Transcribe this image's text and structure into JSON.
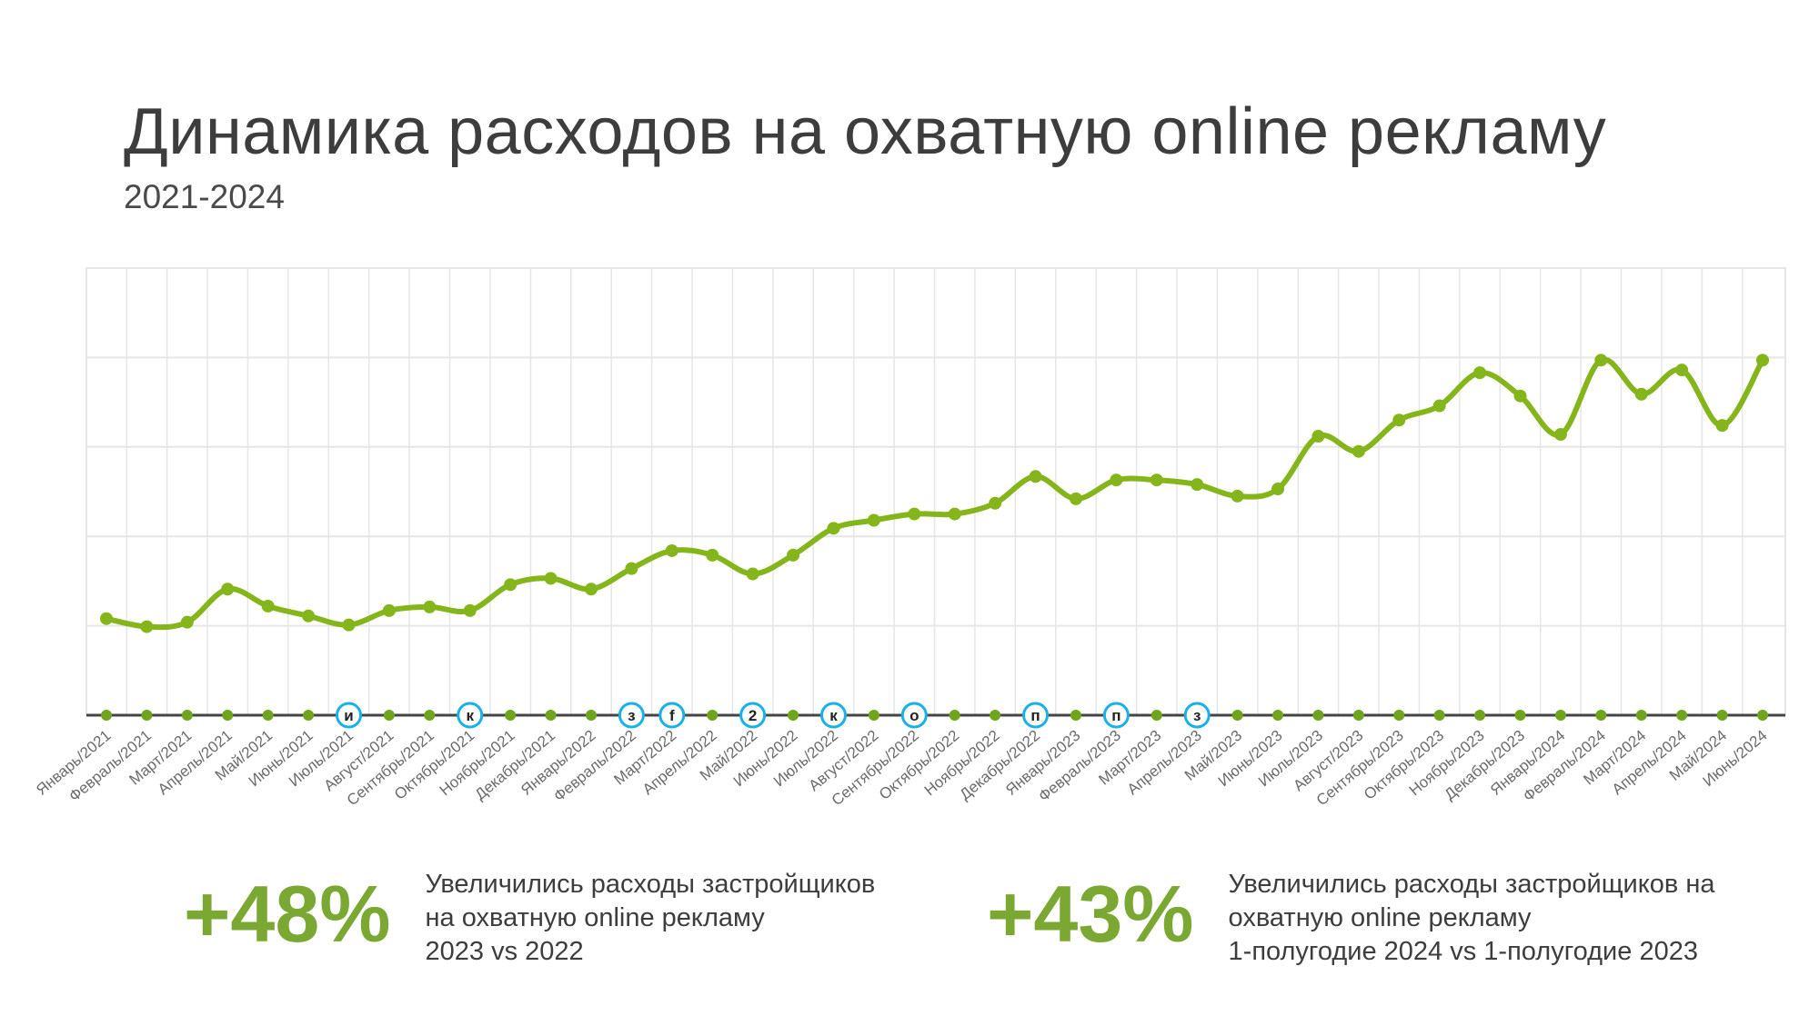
{
  "header": {
    "title": "Динамика расходов на охватную online рекламу",
    "subtitle": "2021-2024"
  },
  "colors": {
    "line": "#84b51a",
    "accent": "#7aa833",
    "marker_ring": "#1ab0e8",
    "grid": "#e6e6e6",
    "baseline": "#444444"
  },
  "chart_data": {
    "type": "line",
    "title": "Динамика расходов на охватную online рекламу",
    "xlabel": "",
    "ylabel": "",
    "ylim": [
      0,
      5
    ],
    "grid": true,
    "categories": [
      "Январь/2021",
      "Февраль/2021",
      "Март/2021",
      "Апрель/2021",
      "Май/2021",
      "Июнь/2021",
      "Июль/2021",
      "Август/2021",
      "Сентябрь/2021",
      "Октябрь/2021",
      "Ноябрь/2021",
      "Декабрь/2021",
      "Январь/2022",
      "Февраль/2022",
      "Март/2022",
      "Апрель/2022",
      "Май/2022",
      "Июнь/2022",
      "Июль/2022",
      "Август/2022",
      "Сентябрь/2022",
      "Октябрь/2022",
      "Ноябрь/2022",
      "Декабрь/2022",
      "Январь/2023",
      "Февраль/2023",
      "Март/2023",
      "Апрель/2023",
      "Май/2023",
      "Июнь/2023",
      "Июль/2023",
      "Август/2023",
      "Сентябрь/2023",
      "Октябрь/2023",
      "Ноябрь/2023",
      "Декабрь/2023",
      "Январь/2024",
      "Февраль/2024",
      "Март/2024",
      "Апрель/2024",
      "Май/2024",
      "Июнь/2024"
    ],
    "series": [
      {
        "name": "Расходы",
        "values": [
          1.08,
          0.99,
          1.04,
          1.41,
          1.22,
          1.11,
          1.01,
          1.17,
          1.21,
          1.17,
          1.46,
          1.53,
          1.41,
          1.64,
          1.84,
          1.79,
          1.58,
          1.79,
          2.09,
          2.18,
          2.25,
          2.25,
          2.37,
          2.67,
          2.42,
          2.63,
          2.63,
          2.58,
          2.45,
          2.53,
          3.12,
          2.95,
          3.3,
          3.46,
          3.83,
          3.57,
          3.14,
          3.97,
          3.59,
          3.86,
          3.24,
          3.97
        ]
      }
    ],
    "annotations": [
      {
        "index": 6,
        "label": "и"
      },
      {
        "index": 9,
        "label": "к"
      },
      {
        "index": 13,
        "label": "з"
      },
      {
        "index": 14,
        "label": "f"
      },
      {
        "index": 16,
        "label": "2"
      },
      {
        "index": 18,
        "label": "к"
      },
      {
        "index": 20,
        "label": "о"
      },
      {
        "index": 23,
        "label": "п"
      },
      {
        "index": 25,
        "label": "п"
      },
      {
        "index": 27,
        "label": "з"
      }
    ]
  },
  "stats": [
    {
      "value": "+48%",
      "lines": [
        "Увеличились расходы застройщиков",
        "на охватную online рекламу",
        "2023 vs 2022"
      ]
    },
    {
      "value": "+43%",
      "lines": [
        "Увеличились расходы застройщиков на",
        "охватную online рекламу",
        "1-полугодие 2024 vs 1-полугодие 2023"
      ]
    }
  ]
}
